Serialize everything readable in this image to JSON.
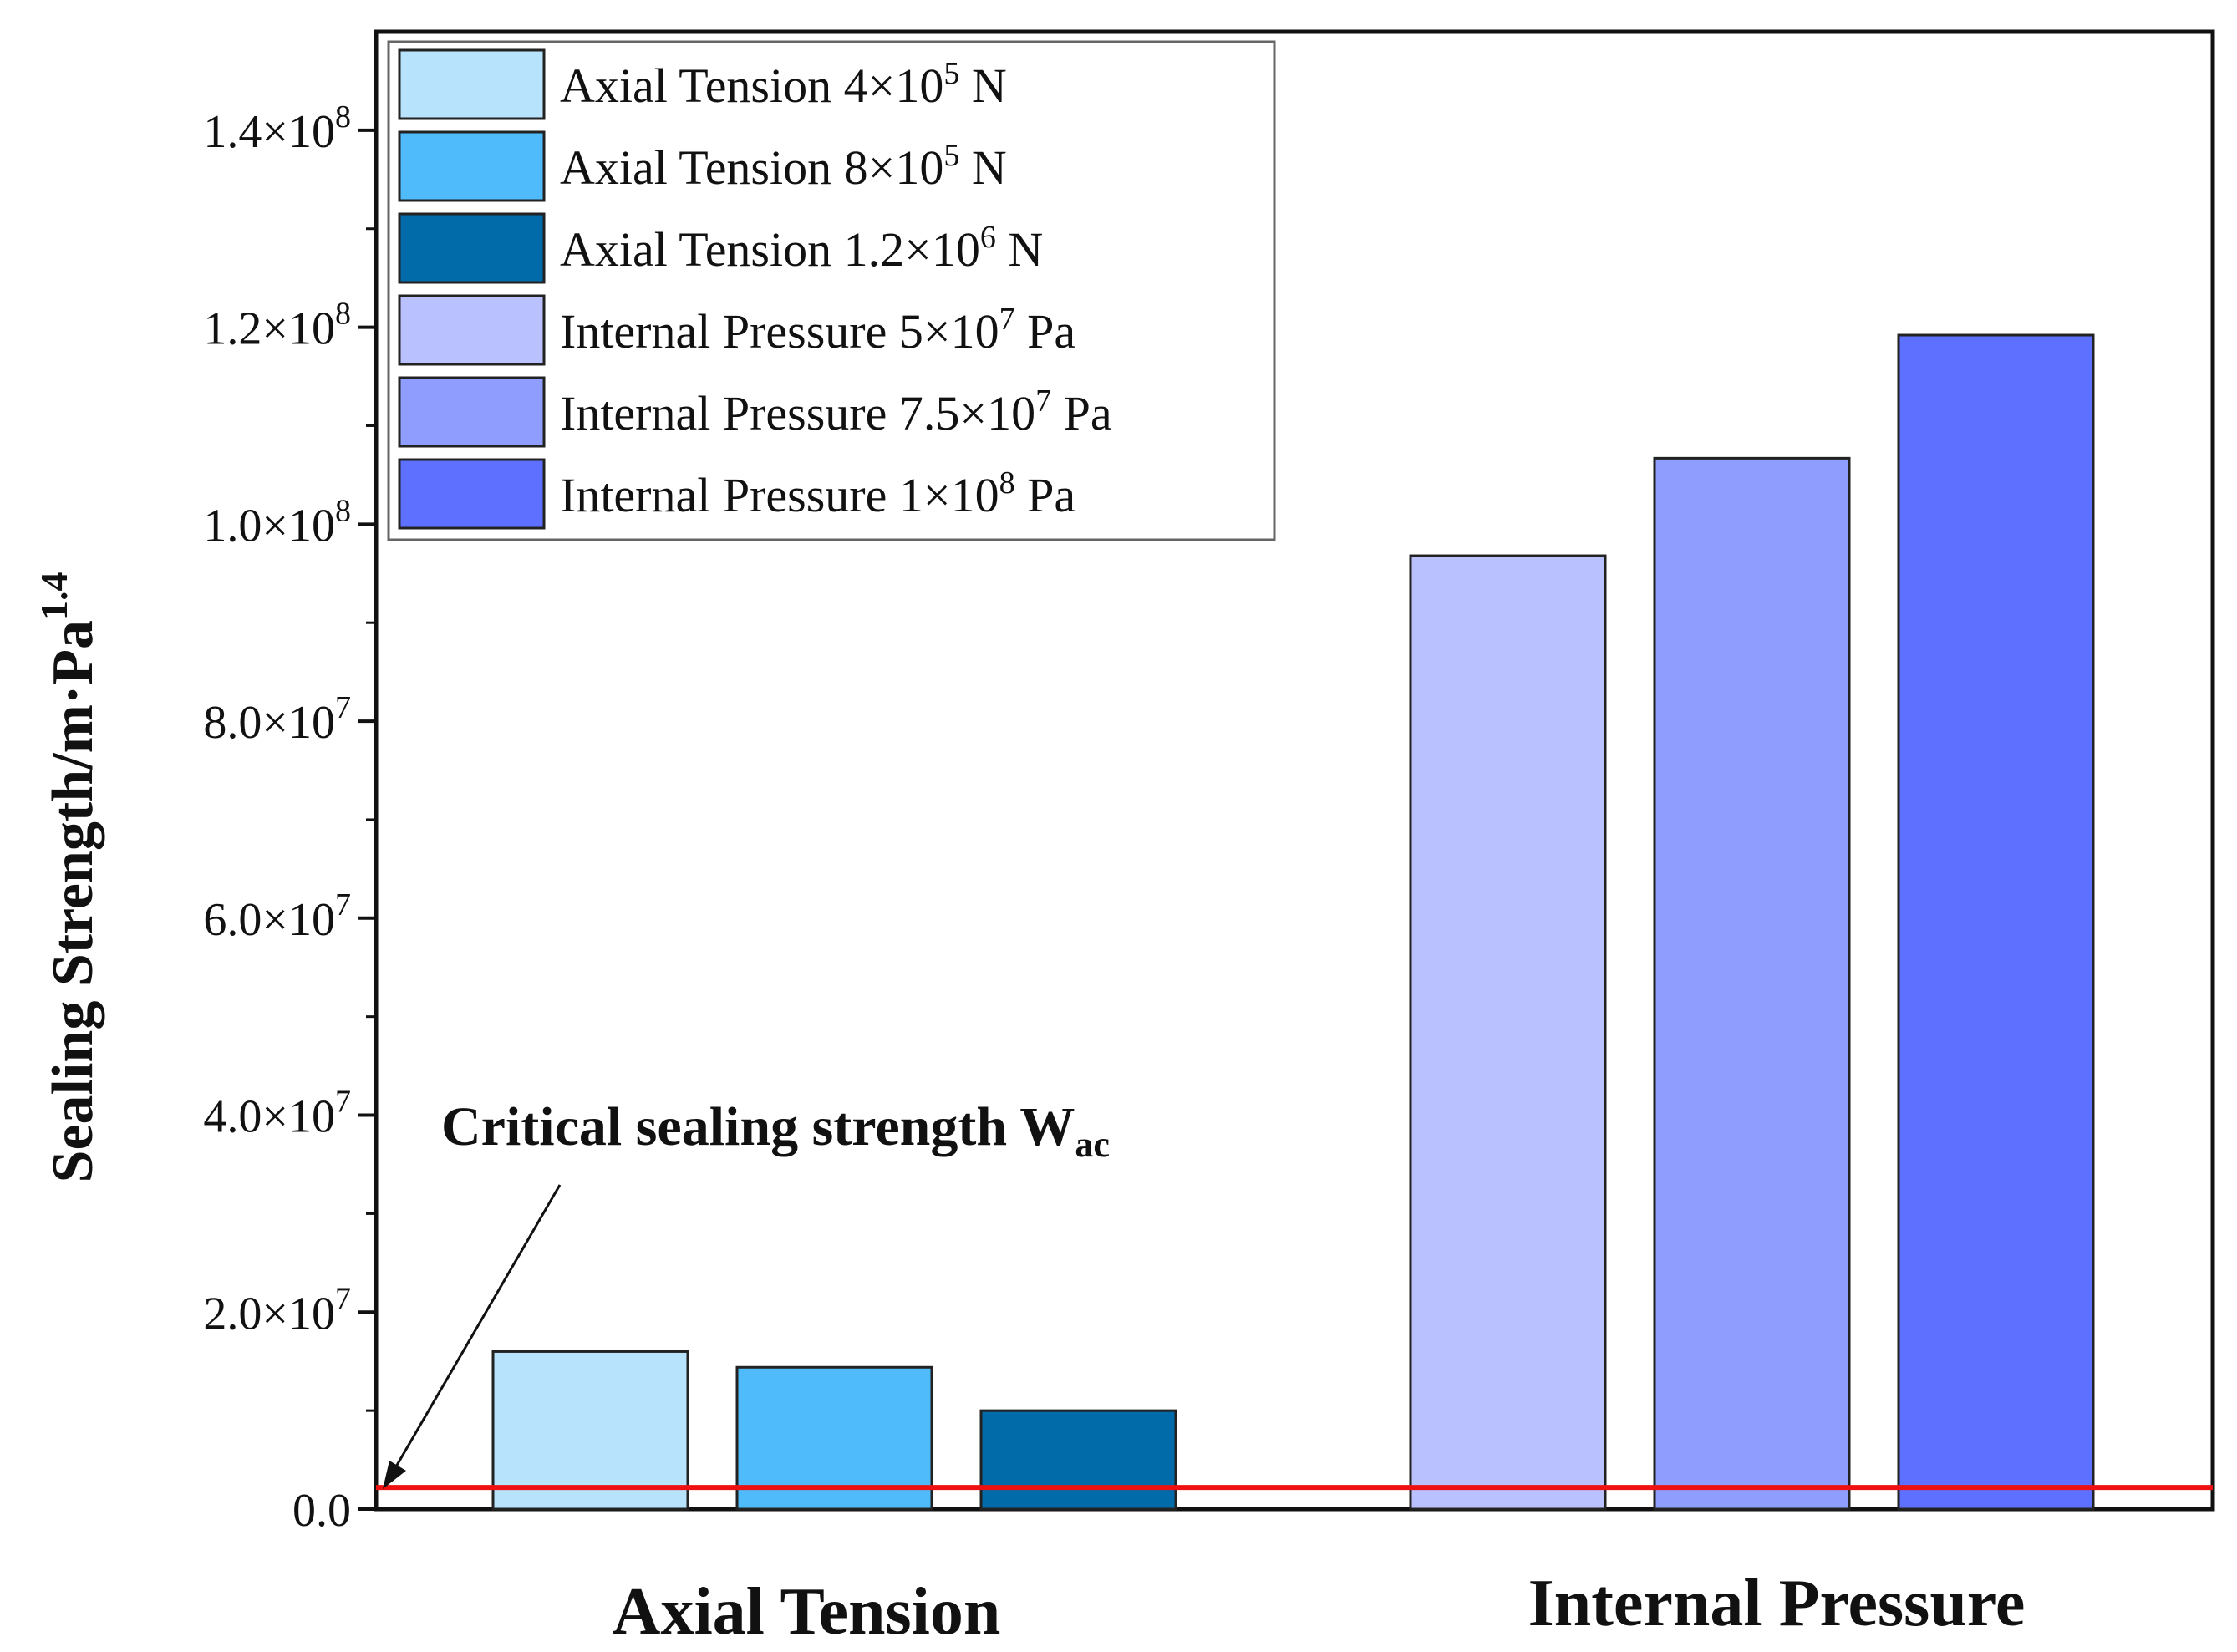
{
  "chart_data": {
    "type": "bar",
    "ylabel": "Sealing Strength/m·Pa",
    "ylabel_superscript": "1.4",
    "ylim": [
      0,
      150000000
    ],
    "yticks": [
      {
        "value": 0,
        "label": "0.0",
        "exp": ""
      },
      {
        "value": 20000000,
        "label": "2.0×10",
        "exp": "7"
      },
      {
        "value": 40000000,
        "label": "4.0×10",
        "exp": "7"
      },
      {
        "value": 60000000,
        "label": "6.0×10",
        "exp": "7"
      },
      {
        "value": 80000000,
        "label": "8.0×10",
        "exp": "7"
      },
      {
        "value": 100000000,
        "label": "1.0×10",
        "exp": "8"
      },
      {
        "value": 120000000,
        "label": "1.2×10",
        "exp": "8"
      },
      {
        "value": 140000000,
        "label": "1.4×10",
        "exp": "8"
      }
    ],
    "categories": [
      "Axial Tension",
      "Internal Pressure"
    ],
    "groups": [
      {
        "category": "Axial Tension",
        "bars": [
          {
            "name": "Axial Tension",
            "level": "4×10",
            "exp": "5",
            "unit": " N",
            "value": 16000000,
            "color": "#b8e3fc"
          },
          {
            "name": "Axial Tension",
            "level": "8×10",
            "exp": "5",
            "unit": " N",
            "value": 14400000,
            "color": "#4fbbfa"
          },
          {
            "name": "Axial Tension",
            "level": "1.2×10",
            "exp": "6",
            "unit": " N",
            "value": 10000000,
            "color": "#016aa9"
          }
        ]
      },
      {
        "category": "Internal Pressure",
        "bars": [
          {
            "name": "Internal Pressure",
            "level": "5×10",
            "exp": "7",
            "unit": " Pa",
            "value": 96800000,
            "color": "#bac1ff"
          },
          {
            "name": "Internal Pressure",
            "level": "7.5×10",
            "exp": "7",
            "unit": " Pa",
            "value": 106700000,
            "color": "#8f9dff"
          },
          {
            "name": "Internal Pressure",
            "level": "1×10",
            "exp": "8",
            "unit": " Pa",
            "value": 119200000,
            "color": "#5e70ff"
          }
        ]
      }
    ],
    "reference_line": {
      "value": 2200000,
      "color": "#ee1111"
    },
    "annotation": {
      "text": "Critical sealing strength W",
      "subscript": "ac"
    },
    "legend_position": "top-left"
  }
}
